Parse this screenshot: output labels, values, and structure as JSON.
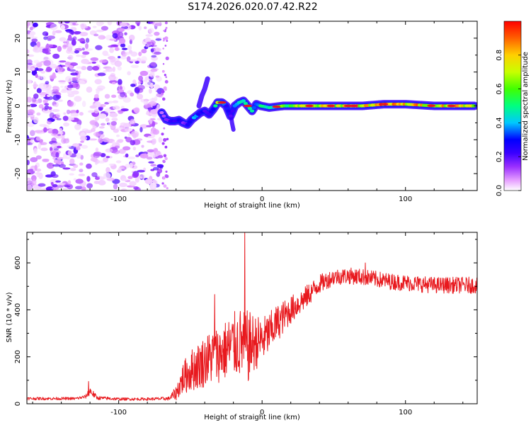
{
  "title": "S174.2026.020.07.42.R22",
  "colors": {
    "line": "#e8191e",
    "core_red": "#e8191e",
    "ridge": "#1a1aff",
    "background": "#ffffff",
    "colormap": [
      "#ffffff",
      "#e6a0ff",
      "#9b30ff",
      "#3b00ff",
      "#0000ff",
      "#00c8ff",
      "#00ff80",
      "#40ff00",
      "#c8ff00",
      "#ffd000",
      "#ff6000",
      "#ff0000"
    ]
  },
  "chart_data": [
    {
      "type": "heatmap",
      "name": "spectrogram",
      "xlabel": "Height of straight line (km)",
      "ylabel": "Frequency (Hz)",
      "xlim": [
        -164,
        150
      ],
      "ylim": [
        -25,
        25
      ],
      "xticks": [
        -100,
        0,
        100
      ],
      "xtick_labels": [
        "-100",
        "0",
        "100"
      ],
      "yticks": [
        -20,
        -10,
        0,
        10,
        20
      ],
      "ytick_labels": [
        "-20",
        "-10",
        "0",
        "10",
        "20"
      ],
      "colorbar": {
        "label": "Normalized spectral amplitude",
        "range": [
          0,
          1
        ],
        "ticks": [
          0.0,
          0.2,
          0.4,
          0.6,
          0.8
        ],
        "tick_labels": [
          "0.0",
          "0.2",
          "0.4",
          "0.6",
          "0.8"
        ]
      },
      "noise_region": {
        "x_range": [
          -164,
          -70
        ],
        "y_range": [
          -25,
          25
        ],
        "amplitude": 0.15
      },
      "signal_ridge": {
        "x": [
          -70,
          -67,
          -64,
          -61,
          -58,
          -55,
          -52,
          -49,
          -46,
          -43,
          -40,
          -37,
          -34,
          -31,
          -28,
          -25,
          -22,
          -19,
          -16,
          -13,
          -10,
          -7,
          -4,
          -1,
          5,
          15,
          30,
          50,
          70,
          85,
          100,
          120,
          140,
          148
        ],
        "y": [
          -2,
          -4,
          -4.5,
          -4.5,
          -4.2,
          -5,
          -5.5,
          -4,
          -3,
          -2,
          -1.5,
          -2.5,
          -1,
          1,
          1,
          0,
          -3,
          0,
          1,
          1.5,
          0,
          -1.5,
          0.5,
          0,
          -0.5,
          0,
          0,
          0,
          0,
          0.5,
          0.5,
          0,
          0,
          0
        ],
        "amplitude": [
          0.15,
          0.2,
          0.25,
          0.35,
          0.3,
          0.25,
          0.3,
          0.4,
          0.45,
          0.35,
          0.3,
          0.3,
          0.45,
          0.7,
          0.45,
          0.35,
          0.3,
          0.4,
          0.5,
          0.65,
          0.55,
          0.6,
          0.45,
          0.55,
          0.55,
          0.65,
          0.75,
          0.8,
          0.85,
          0.9,
          0.85,
          0.85,
          0.85,
          0.8
        ]
      }
    },
    {
      "type": "line",
      "name": "snr",
      "xlabel": "Height of straight line (km)",
      "ylabel": "SNR (10 * v/v)",
      "xlim": [
        -164,
        150
      ],
      "ylim": [
        0,
        730
      ],
      "xticks": [
        -100,
        0,
        100
      ],
      "xtick_labels": [
        "-100",
        "0",
        "100"
      ],
      "yticks": [
        0,
        200,
        400,
        600
      ],
      "ytick_labels": [
        "0",
        "200",
        "400",
        "600"
      ],
      "envelope": {
        "x": [
          -164,
          -130,
          -123,
          -120,
          -115,
          -100,
          -80,
          -65,
          -60,
          -55,
          -50,
          -45,
          -40,
          -35,
          -30,
          -25,
          -20,
          -15,
          -12,
          -10,
          -8,
          -5,
          0,
          5,
          10,
          20,
          30,
          40,
          50,
          60,
          70,
          80,
          90,
          100,
          110,
          120,
          130,
          140,
          150
        ],
        "mean": [
          22,
          22,
          30,
          55,
          25,
          20,
          20,
          22,
          45,
          110,
          140,
          160,
          180,
          200,
          210,
          230,
          250,
          260,
          250,
          240,
          250,
          260,
          270,
          300,
          340,
          400,
          450,
          510,
          540,
          545,
          540,
          530,
          520,
          515,
          510,
          505,
          505,
          505,
          505
        ],
        "noise": [
          6,
          6,
          8,
          20,
          8,
          6,
          6,
          8,
          30,
          70,
          90,
          100,
          110,
          120,
          120,
          130,
          140,
          150,
          140,
          160,
          140,
          120,
          100,
          90,
          80,
          60,
          50,
          40,
          35,
          35,
          35,
          35,
          35,
          35,
          35,
          35,
          35,
          35,
          35
        ]
      },
      "spikes": [
        {
          "x": -121,
          "y": 95
        },
        {
          "x": -12,
          "y": 730
        },
        {
          "x": -33,
          "y": 465
        },
        {
          "x": 72,
          "y": 600
        }
      ]
    }
  ]
}
